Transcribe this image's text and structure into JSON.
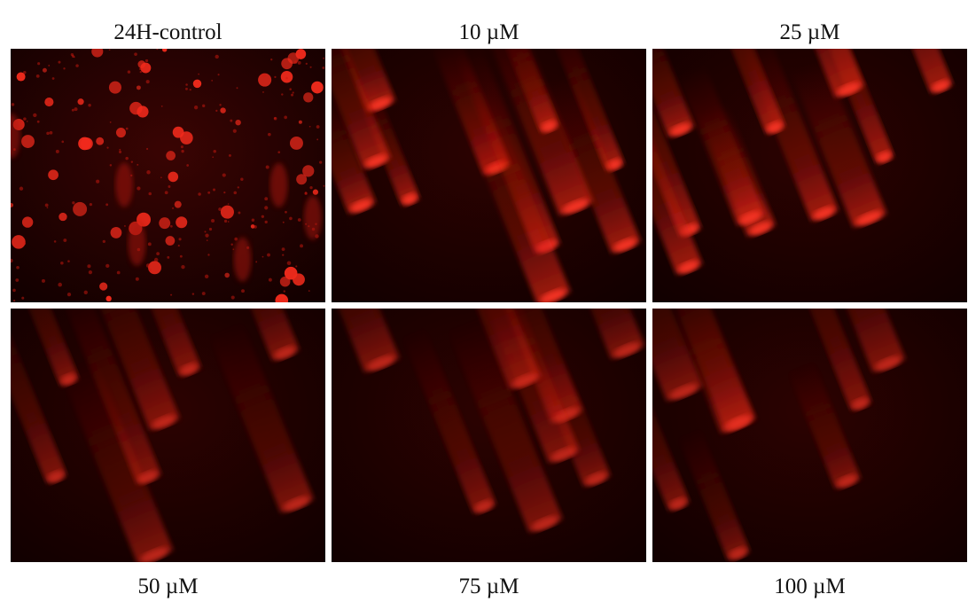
{
  "panels": [
    {
      "label": "24H-control"
    },
    {
      "label": "10 µM"
    },
    {
      "label": "25 µM"
    },
    {
      "label": "50 µM"
    },
    {
      "label": "75 µM"
    },
    {
      "label": "100 µM"
    }
  ]
}
